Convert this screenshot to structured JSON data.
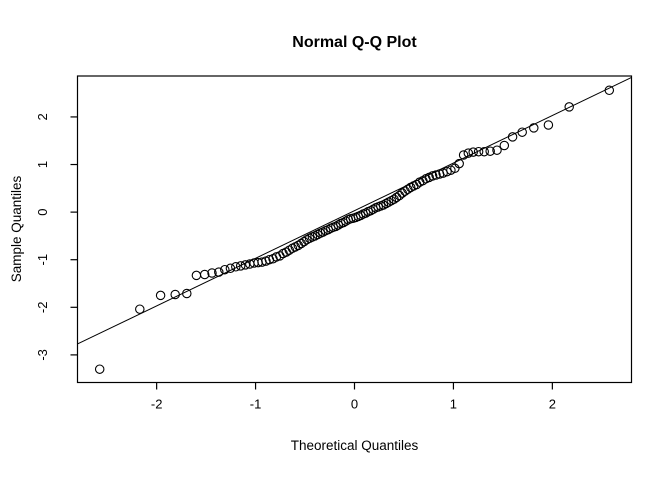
{
  "window": {
    "background": "#ffffff",
    "foreground": "#000000"
  },
  "chart_data": {
    "type": "scatter",
    "title": "Normal Q-Q Plot",
    "xlabel": "Theoretical Quantiles",
    "ylabel": "Sample Quantiles",
    "xlim": [
      -2.8,
      2.8
    ],
    "ylim": [
      -3.58,
      2.86
    ],
    "x_ticks": [
      -2,
      -1,
      0,
      1,
      2
    ],
    "y_ticks": [
      -3,
      -2,
      -1,
      0,
      1,
      2
    ],
    "grid": false,
    "legend": "none",
    "marker": "open-circle",
    "marker_radius": 4.2,
    "point_color": "#000000",
    "line_color": "#000000",
    "ref_line": {
      "slope": 1.0,
      "intercept": 0.03
    },
    "points": [
      [
        -2.576,
        -3.3
      ],
      [
        -2.17,
        -2.04
      ],
      [
        -1.96,
        -1.75
      ],
      [
        -1.812,
        -1.73
      ],
      [
        -1.695,
        -1.71
      ],
      [
        -1.598,
        -1.33
      ],
      [
        -1.514,
        -1.31
      ],
      [
        -1.44,
        -1.28
      ],
      [
        -1.372,
        -1.26
      ],
      [
        -1.311,
        -1.21
      ],
      [
        -1.254,
        -1.18
      ],
      [
        -1.2,
        -1.15
      ],
      [
        -1.15,
        -1.13
      ],
      [
        -1.103,
        -1.11
      ],
      [
        -1.058,
        -1.09
      ],
      [
        -1.015,
        -1.07
      ],
      [
        -0.974,
        -1.06
      ],
      [
        -0.935,
        -1.05
      ],
      [
        -0.896,
        -1.03
      ],
      [
        -0.86,
        -1.0
      ],
      [
        -0.824,
        -0.98
      ],
      [
        -0.789,
        -0.94
      ],
      [
        -0.755,
        -0.92
      ],
      [
        -0.722,
        -0.87
      ],
      [
        -0.69,
        -0.84
      ],
      [
        -0.659,
        -0.8
      ],
      [
        -0.628,
        -0.76
      ],
      [
        -0.598,
        -0.73
      ],
      [
        -0.568,
        -0.7
      ],
      [
        -0.539,
        -0.66
      ],
      [
        -0.51,
        -0.62
      ],
      [
        -0.482,
        -0.58
      ],
      [
        -0.454,
        -0.55
      ],
      [
        -0.426,
        -0.52
      ],
      [
        -0.399,
        -0.5
      ],
      [
        -0.372,
        -0.47
      ],
      [
        -0.345,
        -0.44
      ],
      [
        -0.319,
        -0.42
      ],
      [
        -0.292,
        -0.39
      ],
      [
        -0.266,
        -0.37
      ],
      [
        -0.24,
        -0.34
      ],
      [
        -0.215,
        -0.32
      ],
      [
        -0.189,
        -0.3
      ],
      [
        -0.164,
        -0.27
      ],
      [
        -0.138,
        -0.24
      ],
      [
        -0.113,
        -0.22
      ],
      [
        -0.088,
        -0.19
      ],
      [
        -0.063,
        -0.16
      ],
      [
        -0.038,
        -0.14
      ],
      [
        -0.013,
        -0.13
      ],
      [
        0.013,
        -0.11
      ],
      [
        0.038,
        -0.09
      ],
      [
        0.063,
        -0.07
      ],
      [
        0.088,
        -0.04
      ],
      [
        0.113,
        -0.02
      ],
      [
        0.138,
        0.01
      ],
      [
        0.164,
        0.03
      ],
      [
        0.189,
        0.06
      ],
      [
        0.215,
        0.09
      ],
      [
        0.24,
        0.11
      ],
      [
        0.266,
        0.13
      ],
      [
        0.292,
        0.15
      ],
      [
        0.319,
        0.18
      ],
      [
        0.345,
        0.21
      ],
      [
        0.372,
        0.24
      ],
      [
        0.399,
        0.27
      ],
      [
        0.426,
        0.31
      ],
      [
        0.454,
        0.35
      ],
      [
        0.482,
        0.4
      ],
      [
        0.51,
        0.44
      ],
      [
        0.539,
        0.48
      ],
      [
        0.568,
        0.52
      ],
      [
        0.598,
        0.55
      ],
      [
        0.628,
        0.58
      ],
      [
        0.659,
        0.63
      ],
      [
        0.69,
        0.66
      ],
      [
        0.722,
        0.7
      ],
      [
        0.755,
        0.73
      ],
      [
        0.789,
        0.76
      ],
      [
        0.824,
        0.78
      ],
      [
        0.86,
        0.8
      ],
      [
        0.896,
        0.82
      ],
      [
        0.935,
        0.85
      ],
      [
        0.974,
        0.88
      ],
      [
        1.015,
        0.92
      ],
      [
        1.058,
        1.02
      ],
      [
        1.103,
        1.2
      ],
      [
        1.15,
        1.24
      ],
      [
        1.2,
        1.26
      ],
      [
        1.254,
        1.27
      ],
      [
        1.311,
        1.27
      ],
      [
        1.372,
        1.28
      ],
      [
        1.44,
        1.3
      ],
      [
        1.514,
        1.4
      ],
      [
        1.598,
        1.58
      ],
      [
        1.695,
        1.68
      ],
      [
        1.812,
        1.77
      ],
      [
        1.96,
        1.83
      ],
      [
        2.17,
        2.21
      ],
      [
        2.576,
        2.56
      ]
    ]
  }
}
